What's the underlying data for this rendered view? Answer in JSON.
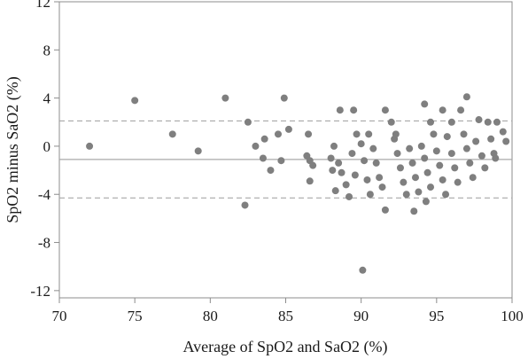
{
  "chart_data": {
    "type": "scatter",
    "title": "",
    "xlabel": "Average of SpO2 and SaO2 (%)",
    "ylabel": "SpO2 minus SaO2 (%)",
    "xlim": [
      70,
      100
    ],
    "ylim": [
      -12.6,
      12
    ],
    "xticks": [
      70,
      75,
      80,
      85,
      90,
      95,
      100
    ],
    "yticks": [
      12,
      8,
      4,
      0,
      -4,
      -8,
      -12
    ],
    "reference_lines": {
      "mean_bias": -1.1,
      "upper_limit": 2.1,
      "lower_limit": -4.3
    },
    "colors": {
      "points": "#7f7f7f",
      "lines": "#a8a8a8",
      "frame": "#8c8c8c"
    },
    "points": [
      [
        72,
        0
      ],
      [
        75,
        3.8
      ],
      [
        77.5,
        1.0
      ],
      [
        79.2,
        -0.4
      ],
      [
        81,
        4.0
      ],
      [
        82.5,
        2.0
      ],
      [
        82.3,
        -4.9
      ],
      [
        83,
        0
      ],
      [
        83.5,
        -1.0
      ],
      [
        84,
        -2.0
      ],
      [
        83.6,
        0.6
      ],
      [
        84.5,
        1.0
      ],
      [
        84.9,
        4.0
      ],
      [
        85.2,
        1.4
      ],
      [
        84.7,
        -1.2
      ],
      [
        86.5,
        1.0
      ],
      [
        86.4,
        -0.8
      ],
      [
        86.6,
        -1.2
      ],
      [
        86.6,
        -2.9
      ],
      [
        86.8,
        -1.6
      ],
      [
        88,
        -1.0
      ],
      [
        88.2,
        0
      ],
      [
        88.1,
        -2.0
      ],
      [
        88.3,
        -3.7
      ],
      [
        88.5,
        -1.4
      ],
      [
        88.7,
        -2.2
      ],
      [
        88.6,
        3.0
      ],
      [
        89,
        -3.2
      ],
      [
        89.2,
        -4.2
      ],
      [
        89.4,
        -0.6
      ],
      [
        89.6,
        -2.4
      ],
      [
        89.5,
        3.0
      ],
      [
        89.7,
        1.0
      ],
      [
        90,
        0.2
      ],
      [
        90.2,
        -1.2
      ],
      [
        90.4,
        -2.8
      ],
      [
        90.6,
        -4.0
      ],
      [
        90.5,
        1.0
      ],
      [
        90.8,
        -0.2
      ],
      [
        91,
        -1.4
      ],
      [
        91.2,
        -2.6
      ],
      [
        91.4,
        -3.4
      ],
      [
        90.1,
        -10.3
      ],
      [
        91.6,
        3.0
      ],
      [
        91.6,
        -5.3
      ],
      [
        92,
        2.0
      ],
      [
        92.2,
        0.6
      ],
      [
        92.4,
        -0.6
      ],
      [
        92.6,
        -1.8
      ],
      [
        92.8,
        -3.0
      ],
      [
        93,
        -4.0
      ],
      [
        92.3,
        1.0
      ],
      [
        93.2,
        -0.2
      ],
      [
        93.4,
        -1.4
      ],
      [
        93.6,
        -2.6
      ],
      [
        93.8,
        -3.8
      ],
      [
        93.5,
        -5.4
      ],
      [
        94,
        0
      ],
      [
        94.2,
        3.5
      ],
      [
        94.2,
        -1.0
      ],
      [
        94.4,
        -2.2
      ],
      [
        94.6,
        -3.4
      ],
      [
        94.3,
        -4.6
      ],
      [
        94.6,
        2.0
      ],
      [
        94.8,
        1.0
      ],
      [
        95,
        -0.4
      ],
      [
        95.2,
        -1.6
      ],
      [
        95.4,
        -2.8
      ],
      [
        95.6,
        -4.0
      ],
      [
        95.4,
        3.0
      ],
      [
        95.7,
        0.8
      ],
      [
        96,
        2.0
      ],
      [
        96,
        -0.6
      ],
      [
        96.2,
        -1.8
      ],
      [
        96.4,
        -3.0
      ],
      [
        96.6,
        3.0
      ],
      [
        96.8,
        1.0
      ],
      [
        97,
        4.1
      ],
      [
        97,
        -0.2
      ],
      [
        97.2,
        -1.4
      ],
      [
        97.4,
        -2.6
      ],
      [
        97.6,
        0.4
      ],
      [
        97.8,
        2.2
      ],
      [
        98,
        -0.8
      ],
      [
        98.2,
        -1.8
      ],
      [
        98.4,
        2.0
      ],
      [
        98.6,
        0.6
      ],
      [
        98.8,
        -0.6
      ],
      [
        99,
        2.0
      ],
      [
        99.4,
        1.2
      ],
      [
        99.6,
        0.4
      ],
      [
        98.9,
        -1.0
      ]
    ]
  }
}
